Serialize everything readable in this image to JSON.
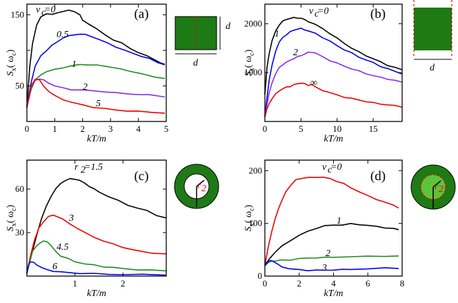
{
  "chart_data": [
    {
      "panel": "(a)",
      "type": "line",
      "xlabel": "kT/m",
      "ylabel_main": "S",
      "ylabel_sub": "x",
      "ylabel_arg": "(  ω",
      "ylabel_argsub": "c",
      "ylabel_close": ")",
      "xlim": [
        0,
        5
      ],
      "ylim": [
        0,
        165
      ],
      "xticks": [
        0,
        1,
        2,
        3,
        4,
        5
      ],
      "yticks": [
        50,
        100,
        150
      ],
      "yticklabels": [
        "50",
        "",
        "150"
      ],
      "inset": {
        "shape": "square",
        "label_right": "d",
        "label_bottom": "d"
      },
      "series": [
        {
          "name": "v_c=0",
          "color": "#000000",
          "x": [
            0.0,
            0.1,
            0.2,
            0.35,
            0.5,
            0.7,
            0.9,
            1.1,
            1.3,
            1.5,
            1.7,
            1.9,
            2.0,
            2.2,
            2.5,
            2.8,
            3.1,
            3.4,
            3.7,
            4.0,
            4.3,
            4.6,
            4.8,
            4.95
          ],
          "y": [
            20,
            75,
            110,
            135,
            147,
            152,
            150,
            153,
            155,
            156,
            155,
            150,
            142,
            138,
            130,
            122,
            115,
            110,
            103,
            97,
            92,
            87,
            82,
            80
          ]
        },
        {
          "name": "0.5",
          "color": "#0000ee",
          "x": [
            0.0,
            0.15,
            0.3,
            0.5,
            0.7,
            0.9,
            1.1,
            1.3,
            1.5,
            1.7,
            1.9,
            2.1,
            2.3,
            2.6,
            2.9,
            3.2,
            3.5,
            3.8,
            4.1,
            4.4,
            4.7,
            4.95
          ],
          "y": [
            20,
            55,
            78,
            92,
            100,
            107,
            112,
            118,
            120,
            122,
            123,
            122,
            120,
            115,
            110,
            105,
            100,
            96,
            92,
            88,
            83,
            80
          ]
        },
        {
          "name": "1",
          "color": "#228b22",
          "x": [
            0.0,
            0.15,
            0.3,
            0.5,
            0.7,
            1.0,
            1.3,
            1.6,
            1.9,
            2.2,
            2.5,
            2.8,
            3.1,
            3.4,
            3.7,
            4.0,
            4.3,
            4.6,
            4.95
          ],
          "y": [
            20,
            45,
            58,
            66,
            70,
            73,
            76,
            78,
            80,
            80,
            79,
            78,
            76,
            73,
            71,
            68,
            65,
            63,
            60
          ]
        },
        {
          "name": "2",
          "color": "#8a2be2",
          "x": [
            0.0,
            0.15,
            0.3,
            0.45,
            0.6,
            0.8,
            1.0,
            1.3,
            1.6,
            2.0,
            2.4,
            2.8,
            3.2,
            3.6,
            4.0,
            4.4,
            4.95
          ],
          "y": [
            20,
            48,
            58,
            60,
            58,
            54,
            50,
            47,
            45,
            44,
            43,
            42,
            40,
            39,
            38,
            37,
            35
          ]
        },
        {
          "name": "5",
          "color": "#ee0000",
          "x": [
            0.0,
            0.15,
            0.3,
            0.45,
            0.6,
            0.8,
            1.0,
            1.3,
            1.6,
            2.0,
            2.4,
            2.8,
            3.2,
            3.6,
            4.0,
            4.5,
            4.95
          ],
          "y": [
            20,
            50,
            60,
            58,
            50,
            42,
            36,
            31,
            27,
            23,
            20,
            18,
            16,
            15,
            14,
            13,
            12
          ]
        }
      ],
      "labels": [
        "v",
        "c",
        "=0",
        "0.5",
        "1",
        "2",
        "5",
        "(a)"
      ]
    },
    {
      "panel": "(b)",
      "type": "line",
      "xlabel": "kT/m",
      "ylabel_main": "S",
      "ylabel_sub": "x",
      "ylabel_arg": "(  ω",
      "ylabel_argsub": "c",
      "ylabel_close": ")",
      "xlim": [
        0,
        19
      ],
      "ylim": [
        0,
        2400
      ],
      "xticks": [
        0,
        5,
        10,
        15
      ],
      "yticks": [
        1000,
        2000
      ],
      "yticklabels": [
        "1000",
        "2000"
      ],
      "inset": {
        "shape": "strip",
        "label_bottom": "d"
      },
      "series": [
        {
          "name": "v_c=0",
          "color": "#000000",
          "x": [
            0.0,
            0.3,
            0.6,
            1.0,
            1.5,
            2.0,
            2.5,
            3.0,
            3.5,
            4.0,
            4.5,
            5.0,
            5.5,
            6.0,
            7.0,
            8.0,
            9.0,
            10.0,
            11.0,
            12.0,
            13.0,
            14.0,
            15.0,
            16.0,
            17.0,
            18.0,
            19.0
          ],
          "y": [
            550,
            1100,
            1400,
            1650,
            1850,
            1980,
            2050,
            2090,
            2110,
            2120,
            2120,
            2110,
            2080,
            2050,
            1980,
            1900,
            1800,
            1700,
            1600,
            1500,
            1420,
            1350,
            1280,
            1220,
            1150,
            1100,
            1060
          ]
        },
        {
          "name": "1",
          "color": "#0000ee",
          "x": [
            0.0,
            0.3,
            0.6,
            1.0,
            1.5,
            2.0,
            2.5,
            3.0,
            3.5,
            4.0,
            4.5,
            5.0,
            5.5,
            6.0,
            7.0,
            8.0,
            9.0,
            10.0,
            11.0,
            12.0,
            13.0,
            14.0,
            15.0,
            16.0,
            17.0,
            18.0,
            19.0
          ],
          "y": [
            100,
            500,
            850,
            1150,
            1450,
            1620,
            1720,
            1780,
            1830,
            1870,
            1890,
            1900,
            1880,
            1850,
            1800,
            1720,
            1640,
            1550,
            1470,
            1400,
            1320,
            1260,
            1200,
            1130,
            1080,
            1020,
            980
          ]
        },
        {
          "name": "2",
          "color": "#8a2be2",
          "x": [
            0.0,
            0.3,
            0.6,
            1.0,
            1.5,
            2.0,
            2.5,
            3.0,
            3.5,
            4.0,
            4.5,
            5.0,
            5.5,
            6.0,
            6.5,
            7.0,
            8.0,
            9.0,
            10.0,
            11.0,
            12.0,
            13.0,
            14.0,
            15.0,
            16.0,
            17.0,
            18.0,
            19.0
          ],
          "y": [
            100,
            350,
            580,
            800,
            980,
            1100,
            1170,
            1210,
            1250,
            1290,
            1320,
            1350,
            1380,
            1410,
            1420,
            1400,
            1320,
            1250,
            1190,
            1130,
            1080,
            1030,
            980,
            940,
            900,
            870,
            840,
            800
          ]
        },
        {
          "name": "∞",
          "color": "#ee0000",
          "x": [
            0.0,
            0.3,
            0.6,
            1.0,
            1.5,
            2.0,
            2.5,
            3.0,
            3.5,
            4.0,
            4.5,
            5.0,
            5.5,
            6.0,
            6.5,
            7.0,
            8.0,
            9.0,
            10.0,
            11.0,
            12.0,
            13.0,
            14.0,
            15.0,
            16.0,
            17.0,
            18.0,
            19.0
          ],
          "y": [
            100,
            250,
            370,
            470,
            560,
            630,
            670,
            700,
            720,
            750,
            770,
            790,
            770,
            740,
            760,
            700,
            640,
            590,
            540,
            500,
            470,
            440,
            410,
            380,
            360,
            340,
            320,
            300
          ]
        }
      ],
      "labels": [
        "v",
        "c",
        "=0",
        "1",
        "2",
        "∞",
        "(b)"
      ]
    },
    {
      "panel": "(c)",
      "type": "line",
      "xlabel": "kT/m",
      "ylabel_main": "S",
      "ylabel_sub": "x",
      "ylabel_arg": "(  ω",
      "ylabel_argsub": "c",
      "ylabel_close": ")",
      "xlim": [
        0,
        2.9
      ],
      "ylim": [
        0,
        80
      ],
      "xticks": [
        1,
        2
      ],
      "yticks": [
        30,
        60
      ],
      "yticklabels": [
        "30",
        "60"
      ],
      "inset": {
        "shape": "annulus",
        "label_inner": "r",
        "label_inner_sub": "2"
      },
      "series": [
        {
          "name": "r_2=1.5",
          "color": "#000000",
          "x": [
            0.0,
            0.1,
            0.2,
            0.3,
            0.4,
            0.5,
            0.6,
            0.7,
            0.8,
            0.9,
            1.0,
            1.1,
            1.2,
            1.3,
            1.4,
            1.5,
            1.7,
            1.9,
            2.1,
            2.3,
            2.5,
            2.7,
            2.9
          ],
          "y": [
            2,
            15,
            28,
            39,
            48,
            55,
            60,
            64,
            66,
            67,
            67,
            66,
            64,
            62,
            60,
            58,
            55,
            52,
            49,
            47,
            45,
            42,
            40
          ]
        },
        {
          "name": "3",
          "color": "#ee0000",
          "x": [
            0.0,
            0.08,
            0.16,
            0.25,
            0.35,
            0.45,
            0.55,
            0.65,
            0.75,
            0.9,
            1.05,
            1.2,
            1.4,
            1.6,
            1.8,
            2.0,
            2.2,
            2.4,
            2.6,
            2.9
          ],
          "y": [
            2,
            15,
            25,
            33,
            38,
            41,
            42,
            41,
            39,
            36,
            33,
            30,
            27,
            24,
            22,
            20,
            18,
            17,
            16,
            15
          ]
        },
        {
          "name": "4.5",
          "color": "#228b22",
          "x": [
            0.0,
            0.06,
            0.12,
            0.2,
            0.28,
            0.35,
            0.42,
            0.5,
            0.6,
            0.7,
            0.85,
            1.0,
            1.2,
            1.4,
            1.6,
            1.8,
            2.0,
            2.3,
            2.6,
            2.9
          ],
          "y": [
            2,
            10,
            17,
            21,
            23,
            24,
            24,
            21,
            17,
            14,
            12,
            10,
            8.5,
            7.5,
            6.5,
            6,
            5,
            4.5,
            4,
            3.5
          ]
        },
        {
          "name": "6",
          "color": "#0000ee",
          "x": [
            0.0,
            0.03,
            0.06,
            0.1,
            0.15,
            0.2,
            0.3,
            0.4,
            0.55,
            0.7,
            0.9,
            1.1,
            1.4,
            1.7,
            2.0,
            2.4,
            2.9
          ],
          "y": [
            2,
            7,
            9.5,
            10,
            9,
            8,
            6,
            4.5,
            3.5,
            2.8,
            2.3,
            2,
            1.6,
            1.3,
            1.1,
            1,
            0.9
          ]
        }
      ],
      "labels": [
        "r",
        "2",
        "=1.5",
        "3",
        "4.5",
        "6",
        "(c)"
      ]
    },
    {
      "panel": "(d)",
      "type": "line",
      "xlabel": "kT/m",
      "ylabel_main": "S",
      "ylabel_sub": "x",
      "ylabel_arg": "(  ω",
      "ylabel_argsub": "c",
      "ylabel_close": ")",
      "xlim": [
        0,
        8
      ],
      "ylim": [
        0,
        220
      ],
      "xticks": [
        0,
        2,
        4,
        6,
        8
      ],
      "yticks": [
        0,
        100,
        200
      ],
      "yticklabels": [
        "0",
        "100",
        "200"
      ],
      "inset": {
        "shape": "annulus-core",
        "label_inner": "r",
        "label_inner_sub": "2"
      },
      "series": [
        {
          "name": "v_c=0",
          "color": "#ee0000",
          "x": [
            0.0,
            0.2,
            0.4,
            0.6,
            0.8,
            1.0,
            1.2,
            1.4,
            1.6,
            1.8,
            2.0,
            2.3,
            2.6,
            3.0,
            3.4,
            3.8,
            4.2,
            4.6,
            5.0,
            5.5,
            6.0,
            6.5,
            7.0,
            7.5,
            7.8
          ],
          "y": [
            20,
            55,
            85,
            108,
            128,
            145,
            158,
            168,
            176,
            182,
            185,
            186,
            187,
            188,
            187,
            185,
            180,
            175,
            168,
            160,
            152,
            146,
            140,
            134,
            130
          ]
        },
        {
          "name": "1",
          "color": "#000000",
          "x": [
            0.0,
            0.3,
            0.6,
            1.0,
            1.5,
            2.0,
            2.5,
            3.0,
            3.5,
            4.0,
            4.5,
            5.0,
            5.5,
            6.0,
            6.5,
            7.0,
            7.5,
            7.8
          ],
          "y": [
            20,
            35,
            45,
            57,
            68,
            77,
            85,
            91,
            95,
            97,
            97,
            99,
            98,
            96,
            94,
            92,
            90,
            88
          ]
        },
        {
          "name": "2",
          "color": "#228b22",
          "x": [
            0.0,
            0.2,
            0.4,
            0.6,
            0.8,
            1.0,
            1.5,
            2.0,
            2.5,
            3.0,
            3.5,
            4.0,
            5.0,
            6.0,
            7.0,
            7.8
          ],
          "y": [
            20,
            26,
            28,
            29,
            30,
            30,
            31,
            33,
            34,
            35,
            35,
            36,
            37,
            37,
            38,
            38
          ]
        },
        {
          "name": "3",
          "color": "#0000ee",
          "x": [
            0.0,
            0.2,
            0.35,
            0.5,
            0.7,
            1.0,
            1.4,
            2.0,
            2.5,
            3.0,
            3.5,
            4.0,
            4.5,
            5.0,
            6.0,
            7.0,
            7.8
          ],
          "y": [
            20,
            27,
            30,
            28,
            23,
            18,
            14,
            12,
            11,
            11,
            11,
            12,
            12,
            13,
            14,
            15,
            15
          ]
        }
      ],
      "labels": [
        "v",
        "c",
        "=0",
        "1",
        "2",
        "3",
        "(d)"
      ]
    }
  ]
}
